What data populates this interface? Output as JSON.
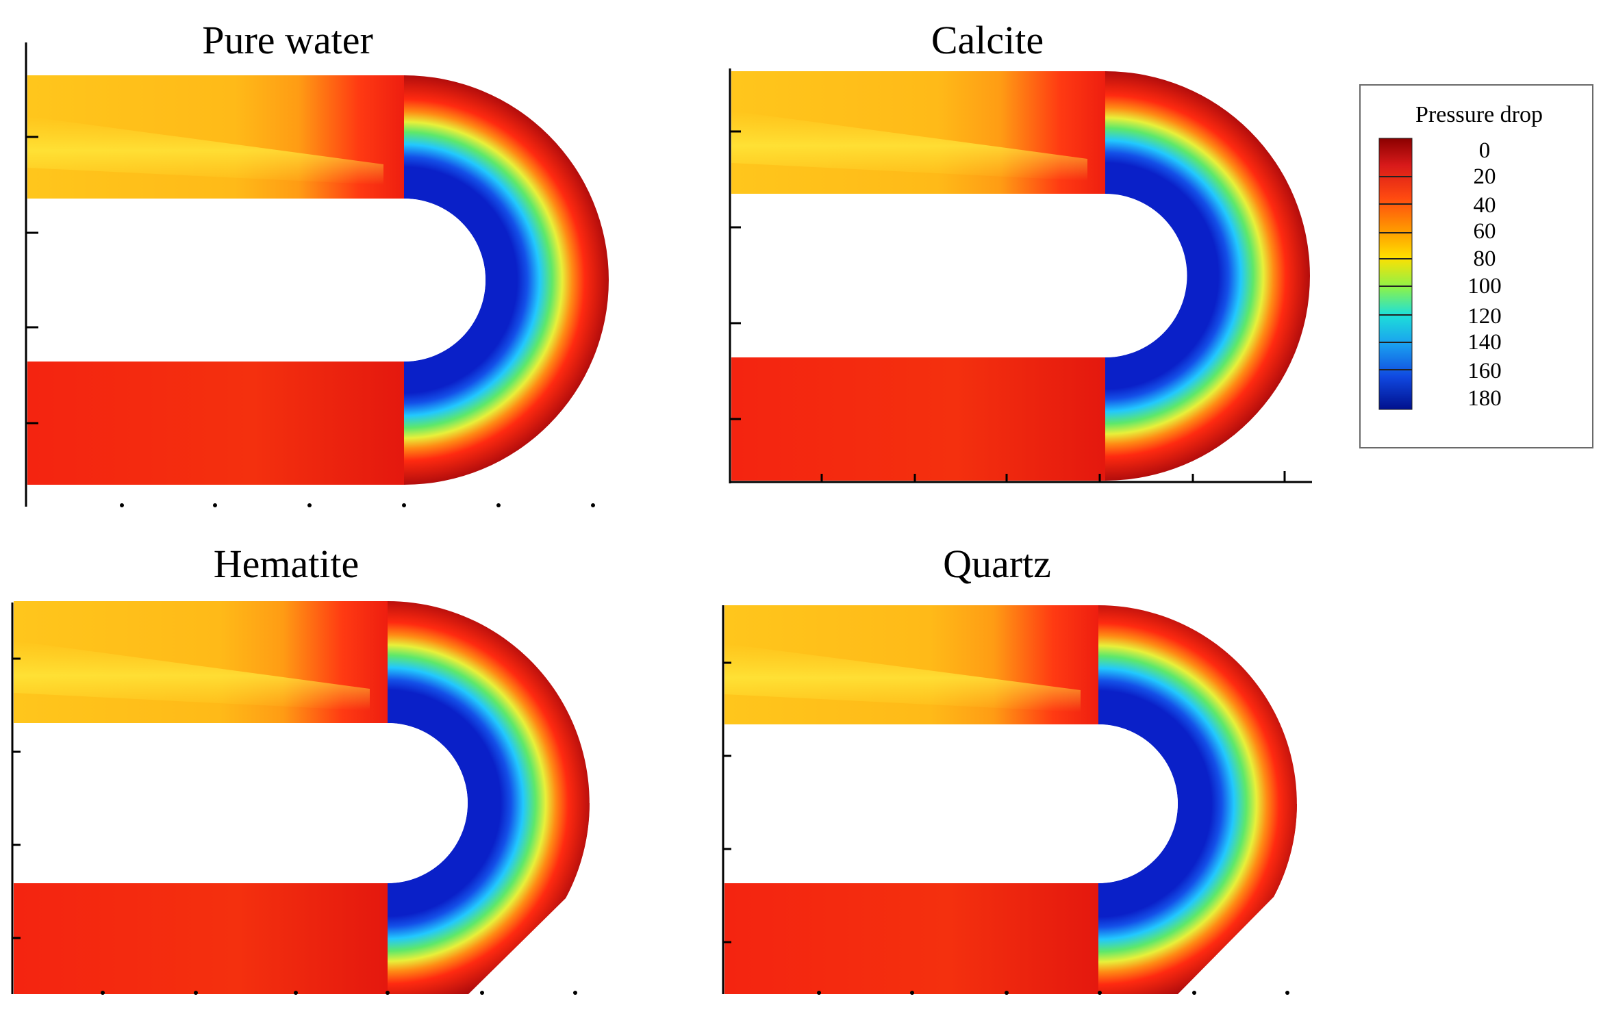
{
  "figure": {
    "panels": [
      {
        "title": "Pure water"
      },
      {
        "title": "Calcite"
      },
      {
        "title": "Hematite"
      },
      {
        "title": "Quartz"
      }
    ],
    "legend": {
      "title": "Pressure drop",
      "ticks": [
        "0",
        "20",
        "40",
        "60",
        "80",
        "100",
        "120",
        "140",
        "160",
        "180"
      ],
      "colormap": [
        "#8b0000",
        "#d61a1a",
        "#ff4a10",
        "#ff9a00",
        "#ffe000",
        "#9cf53a",
        "#1ee0d0",
        "#1aa0f0",
        "#1050e0",
        "#0010a0"
      ]
    },
    "colors": {
      "red_zone": "#f0220e",
      "dark_red_zone": "#c8100e",
      "yellow_zone": "#ffc41a",
      "yellow_core": "#ffe838",
      "green_ring": "#62ea6a",
      "cyan_ring": "#22d6ff",
      "blue_core": "#0a2fd8"
    }
  }
}
